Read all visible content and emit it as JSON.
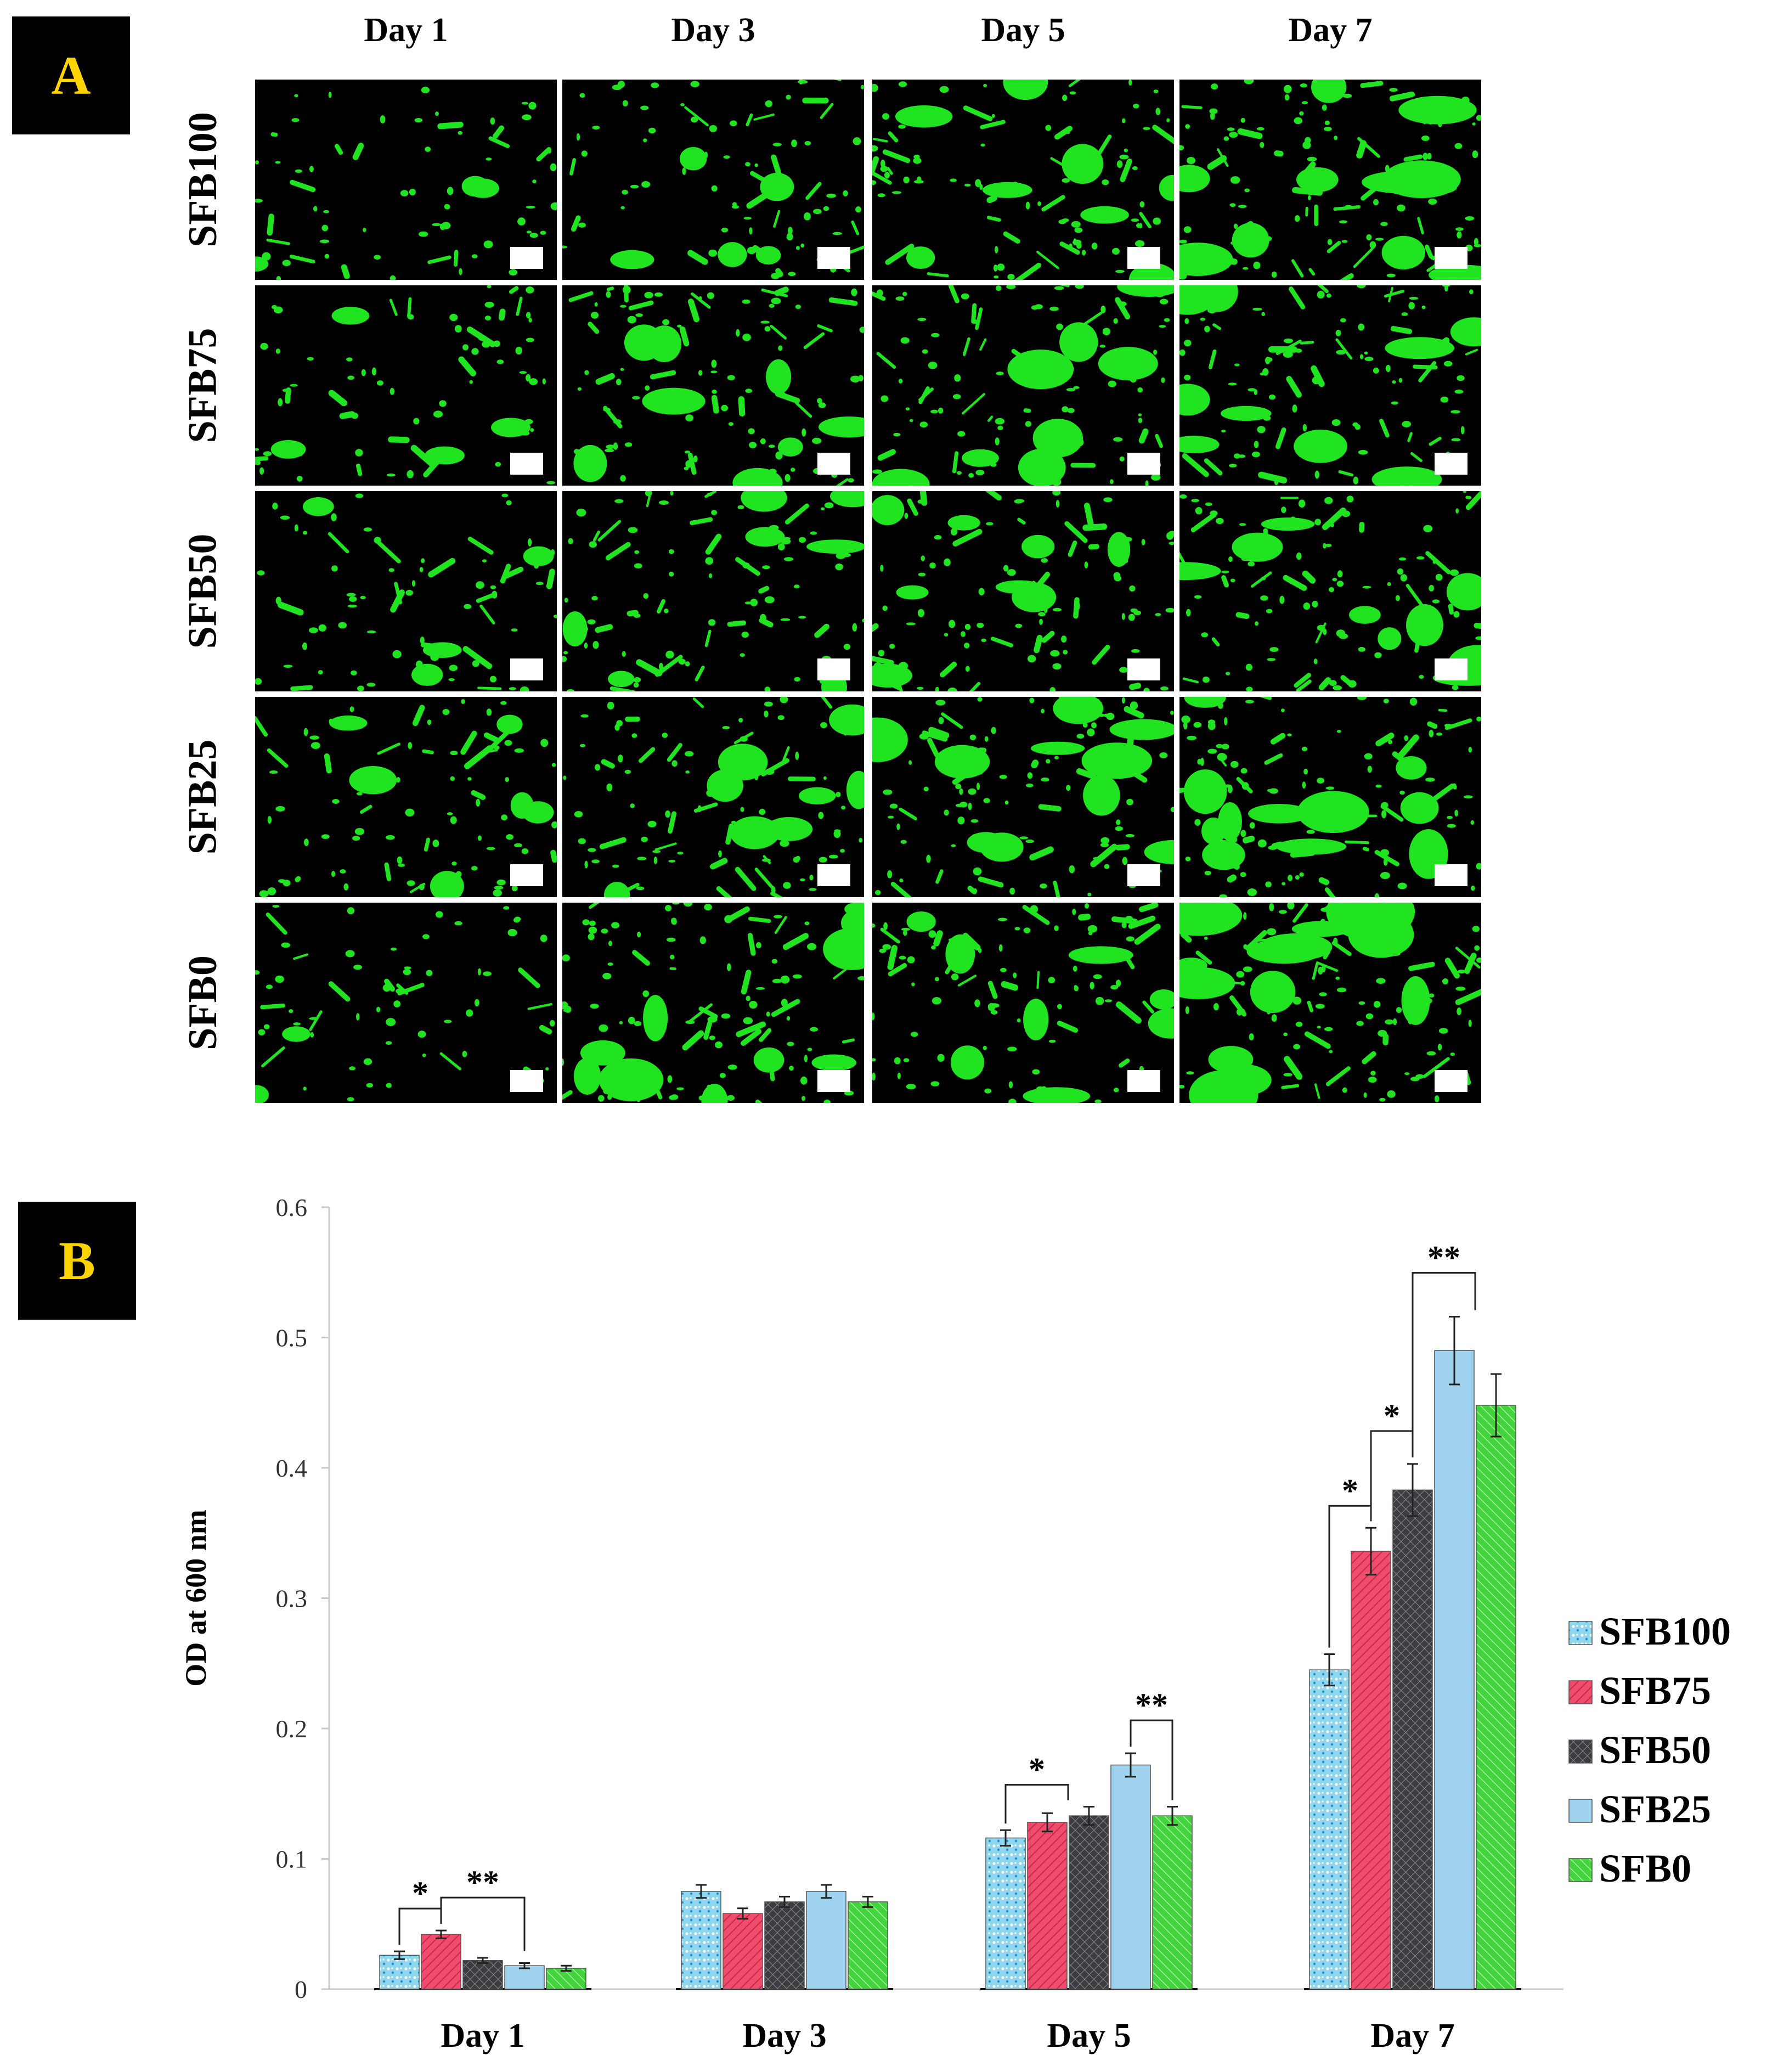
{
  "panel_a": {
    "label": "A",
    "columns": [
      "Day 1",
      "Day 3",
      "Day 5",
      "Day 7"
    ],
    "rows": [
      "SFB100",
      "SFB75",
      "SFB50",
      "SFB25",
      "SFB0"
    ],
    "relative_green_coverage": [
      [
        0.2,
        0.35,
        0.55,
        0.75
      ],
      [
        0.25,
        0.55,
        0.6,
        0.65
      ],
      [
        0.25,
        0.5,
        0.6,
        0.65
      ],
      [
        0.4,
        0.55,
        0.7,
        0.8
      ],
      [
        0.15,
        0.7,
        0.6,
        0.9
      ]
    ],
    "colors": {
      "fluorescence": "#1fe41f",
      "background": "#000000",
      "scale_bar": "#ffffff"
    }
  },
  "panel_b": {
    "label": "B"
  },
  "chart_data": {
    "type": "bar",
    "categories": [
      "Day 1",
      "Day 3",
      "Day 5",
      "Day 7"
    ],
    "series": [
      {
        "name": "SFB100",
        "values": [
          0.026,
          0.075,
          0.116,
          0.245
        ],
        "errors": [
          0.003,
          0.005,
          0.006,
          0.012
        ],
        "color": "#8fd6ef",
        "pattern": "dots"
      },
      {
        "name": "SFB75",
        "values": [
          0.042,
          0.058,
          0.128,
          0.336
        ],
        "errors": [
          0.003,
          0.004,
          0.007,
          0.018
        ],
        "color": "#f04d6d",
        "pattern": "hatch"
      },
      {
        "name": "SFB50",
        "values": [
          0.022,
          0.067,
          0.133,
          0.383
        ],
        "errors": [
          0.002,
          0.004,
          0.007,
          0.02
        ],
        "color": "#3b3d40",
        "pattern": "crosshatch"
      },
      {
        "name": "SFB25",
        "values": [
          0.018,
          0.075,
          0.172,
          0.49
        ],
        "errors": [
          0.002,
          0.005,
          0.009,
          0.026
        ],
        "color": "#9fd2ef",
        "pattern": "solid"
      },
      {
        "name": "SFB0",
        "values": [
          0.016,
          0.067,
          0.133,
          0.448
        ],
        "errors": [
          0.002,
          0.004,
          0.007,
          0.024
        ],
        "color": "#43d43d",
        "pattern": "diagonal"
      }
    ],
    "title": "",
    "xlabel": "",
    "ylabel": "OD at 600 nm",
    "ylim": [
      0,
      0.6
    ],
    "yticks": [
      "0",
      "0.1",
      "0.2",
      "0.3",
      "0.4",
      "0.5",
      "0.6"
    ],
    "grid": false,
    "legend_position": "right",
    "significance": [
      {
        "category": "Day 1",
        "label": "*",
        "between": [
          "SFB100",
          "SFB75"
        ]
      },
      {
        "category": "Day 1",
        "label": "**",
        "between": [
          "SFB75",
          "SFB50–SFB0"
        ]
      },
      {
        "category": "Day 5",
        "label": "*",
        "between": [
          "SFB100",
          "SFB75–SFB50"
        ]
      },
      {
        "category": "Day 5",
        "label": "**",
        "between": [
          "SFB25",
          "SFB0"
        ]
      },
      {
        "category": "Day 7",
        "label": "*",
        "between": [
          "SFB100",
          "SFB75"
        ]
      },
      {
        "category": "Day 7",
        "label": "*",
        "between": [
          "SFB75",
          "SFB50"
        ]
      },
      {
        "category": "Day 7",
        "label": "**",
        "between": [
          "SFB50",
          "SFB25–SFB0"
        ]
      }
    ]
  }
}
